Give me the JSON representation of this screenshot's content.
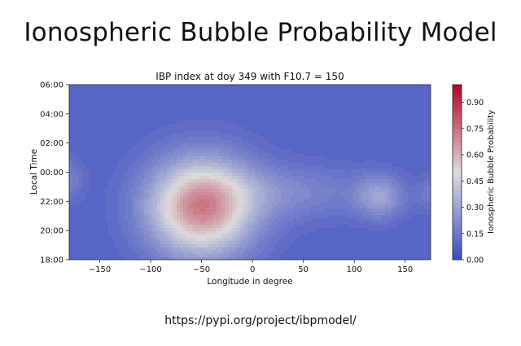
{
  "slide": {
    "title": "Ionospheric Bubble Probability Model",
    "footer_url": "https://pypi.org/project/ibpmodel/"
  },
  "chart_data": {
    "type": "heatmap",
    "title": "IBP index at doy 349 with F10.7 = 150",
    "xlabel": "Longitude in degree",
    "ylabel": "Local Time",
    "xlim": [
      -180,
      175
    ],
    "ylim": [
      18,
      30
    ],
    "x_ticks": [
      {
        "value": -150,
        "label": "−150"
      },
      {
        "value": -100,
        "label": "−100"
      },
      {
        "value": -50,
        "label": "−50"
      },
      {
        "value": 0,
        "label": "0"
      },
      {
        "value": 50,
        "label": "50"
      },
      {
        "value": 100,
        "label": "100"
      },
      {
        "value": 150,
        "label": "150"
      }
    ],
    "y_ticks": [
      {
        "value": 18,
        "label": "18:00"
      },
      {
        "value": 20,
        "label": "20:00"
      },
      {
        "value": 22,
        "label": "22:00"
      },
      {
        "value": 24,
        "label": "00:00"
      },
      {
        "value": 26,
        "label": "02:00"
      },
      {
        "value": 28,
        "label": "04:00"
      },
      {
        "value": 30,
        "label": "06:00"
      }
    ],
    "colorbar": {
      "label": "Ionospheric Bubble Probability",
      "range": [
        0,
        1
      ],
      "ticks": [
        {
          "value": 0.0,
          "label": "0.00"
        },
        {
          "value": 0.15,
          "label": "0.15"
        },
        {
          "value": 0.3,
          "label": "0.30"
        },
        {
          "value": 0.45,
          "label": "0.45"
        },
        {
          "value": 0.6,
          "label": "0.60"
        },
        {
          "value": 0.75,
          "label": "0.75"
        },
        {
          "value": 0.9,
          "label": "0.90"
        }
      ]
    },
    "background_probability": 0.08,
    "features": [
      {
        "name": "main-peak",
        "lon": -50,
        "lt": 21.6,
        "peak": 0.63,
        "lon_sigma": 36,
        "lt_sigma": 2.3
      },
      {
        "name": "secondary-peak",
        "lon": 125,
        "lt": 22.3,
        "peak": 0.2,
        "lon_sigma": 16,
        "lt_sigma": 1.0
      },
      {
        "name": "central-ridge",
        "lon": 40,
        "lt": 22.6,
        "peak": 0.12,
        "lon_sigma": 55,
        "lt_sigma": 1.3
      },
      {
        "name": "western-edge",
        "lon": -180,
        "lt": 23.5,
        "peak": 0.1,
        "lon_sigma": 10,
        "lt_sigma": 1.0
      },
      {
        "name": "eastern-edge",
        "lon": 175,
        "lt": 22.5,
        "peak": 0.08,
        "lon_sigma": 10,
        "lt_sigma": 0.8
      }
    ],
    "colors": {
      "low": "#3b4cc0",
      "mid": "#dddddd",
      "high": "#b40426"
    }
  }
}
